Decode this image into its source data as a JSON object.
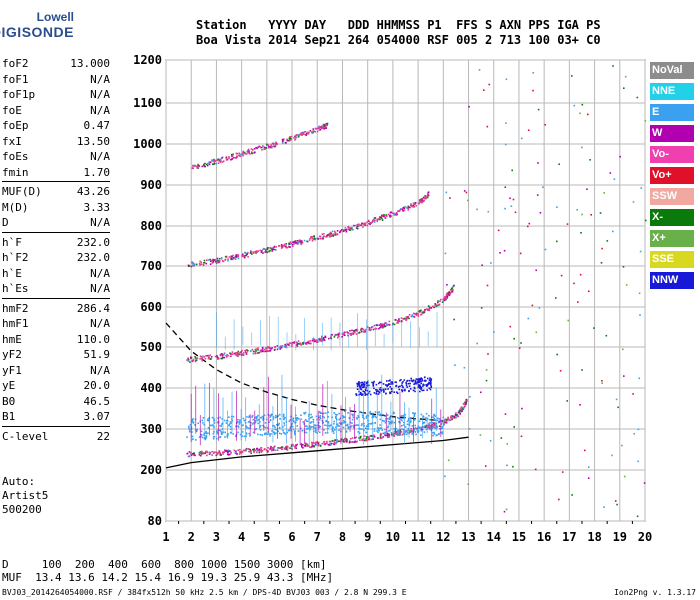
{
  "logo": {
    "line1": "Lowell",
    "line2": "DIGISONDE"
  },
  "header": {
    "row1": "Station   YYYY DAY   DDD HHMMSS P1  FFS S AXN PPS IGA PS",
    "row2": "Boa Vista 2014 Sep21 264 054000 RSF 005 2 713 100 03+ C0"
  },
  "params": [
    [
      {
        "k": "foF2",
        "v": "13.000"
      },
      {
        "k": "foF1",
        "v": "N/A"
      },
      {
        "k": "foF1p",
        "v": "N/A"
      },
      {
        "k": "foE",
        "v": "N/A"
      },
      {
        "k": "foEp",
        "v": "0.47"
      },
      {
        "k": "fxI",
        "v": "13.50"
      },
      {
        "k": "foEs",
        "v": "N/A"
      },
      {
        "k": "fmin",
        "v": "1.70"
      }
    ],
    [
      {
        "k": "MUF(D)",
        "v": "43.26"
      },
      {
        "k": "M(D)",
        "v": "3.33"
      },
      {
        "k": "D",
        "v": "N/A"
      }
    ],
    [
      {
        "k": "h`F",
        "v": "232.0"
      },
      {
        "k": "h`F2",
        "v": "232.0"
      },
      {
        "k": "h`E",
        "v": "N/A"
      },
      {
        "k": "h`Es",
        "v": "N/A"
      }
    ],
    [
      {
        "k": "hmF2",
        "v": "286.4"
      },
      {
        "k": "hmF1",
        "v": "N/A"
      },
      {
        "k": "hmE",
        "v": "110.0"
      },
      {
        "k": "yF2",
        "v": "51.9"
      },
      {
        "k": "yF1",
        "v": "N/A"
      },
      {
        "k": "yE",
        "v": "20.0"
      },
      {
        "k": "B0",
        "v": "46.5"
      },
      {
        "k": "B1",
        "v": "3.07"
      }
    ],
    [
      {
        "k": "C-level",
        "v": "22"
      }
    ]
  ],
  "auto": {
    "line1": "Auto:",
    "line2": "Artist5",
    "line3": "500200"
  },
  "bottom": {
    "d_row": "D     100  200  400  600  800 1000 1500 3000 [km]",
    "muf_row": "MUF  13.4 13.6 14.2 15.4 16.9 19.3 25.9 43.3 [MHz]",
    "file_info": "BVJ03_2014264054000.RSF / 384fx512h 50 kHz 2.5 km / DPS-4D BVJ03 003 / 2.8 N 299.3 E",
    "version": "Ion2Png v. 1.3.17"
  },
  "legend": [
    {
      "label": "NoVal",
      "color": "#8c8c8c"
    },
    {
      "label": "NNE",
      "color": "#22d0e8"
    },
    {
      "label": "E",
      "color": "#3aa0f0"
    },
    {
      "label": "W",
      "color": "#b000b0"
    },
    {
      "label": "Vo-",
      "color": "#f040b0"
    },
    {
      "label": "Vo+",
      "color": "#e0102a"
    },
    {
      "label": "SSW",
      "color": "#f0a8a0"
    },
    {
      "label": "X-",
      "color": "#0a7a0a"
    },
    {
      "label": "X+",
      "color": "#6ab04a"
    },
    {
      "label": "SSE",
      "color": "#d8d820"
    },
    {
      "label": "NNW",
      "color": "#1818d8"
    }
  ],
  "chart_data": {
    "type": "scatter",
    "xlim": [
      1,
      20
    ],
    "ylim": [
      80,
      1200
    ],
    "x_ticks": [
      1,
      2,
      3,
      4,
      5,
      6,
      7,
      8,
      9,
      10,
      11,
      12,
      13,
      14,
      15,
      16,
      17,
      18,
      19,
      20
    ],
    "y_ticks": [
      80,
      200,
      300,
      400,
      500,
      600,
      700,
      800,
      900,
      1000,
      1100,
      1200
    ],
    "grid": true,
    "traces": [
      {
        "name": "O-trace F2",
        "color": "#e0408a",
        "x": [
          1.8,
          3,
          4,
          5,
          6,
          7,
          8,
          9,
          10,
          11,
          12,
          12.6,
          12.9
        ],
        "y": [
          240,
          243,
          247,
          252,
          258,
          265,
          272,
          280,
          290,
          300,
          318,
          340,
          370
        ]
      },
      {
        "name": "O-trace 2nd hop",
        "color": "#e0408a",
        "x": [
          1.8,
          3,
          4,
          5,
          6,
          7,
          8,
          9,
          10,
          11,
          12,
          12.4
        ],
        "y": [
          470,
          478,
          487,
          497,
          508,
          520,
          533,
          547,
          563,
          585,
          620,
          650
        ]
      },
      {
        "name": "O-trace 3rd hop",
        "color": "#e0408a",
        "x": [
          1.8,
          3,
          4,
          5,
          6,
          7,
          8,
          9,
          10,
          11,
          11.4
        ],
        "y": [
          703,
          715,
          728,
          742,
          757,
          773,
          790,
          810,
          832,
          858,
          880
        ]
      },
      {
        "name": "O-trace 4th hop",
        "color": "#e0408a",
        "x": [
          2,
          3,
          4,
          5,
          6,
          7,
          7.4
        ],
        "y": [
          945,
          960,
          978,
          996,
          1016,
          1038,
          1048
        ]
      },
      {
        "name": "E-scatter",
        "color": "#3aa0f0",
        "x": [
          1.8,
          3,
          4,
          5,
          6,
          7,
          8,
          9,
          10,
          11,
          12
        ],
        "y": [
          300,
          305,
          310,
          312,
          315,
          317,
          318,
          318,
          316,
          314,
          310
        ]
      },
      {
        "name": "NNW-echoes",
        "color": "#1818d8",
        "x": [
          8.5,
          9,
          10,
          11,
          11.5
        ],
        "y": [
          400,
          402,
          405,
          410,
          415
        ]
      }
    ],
    "model_profiles": [
      {
        "name": "solid",
        "color": "#000",
        "x": [
          1,
          2,
          4,
          6,
          8,
          10,
          12,
          13
        ],
        "y": [
          205,
          218,
          232,
          242,
          252,
          262,
          272,
          280
        ]
      },
      {
        "name": "dashed",
        "color": "#000",
        "x": [
          1,
          2,
          3,
          4,
          5,
          6,
          7,
          8,
          9,
          10,
          11,
          12
        ],
        "y": [
          560,
          490,
          445,
          412,
          390,
          372,
          358,
          347,
          338,
          330,
          325,
          320
        ]
      }
    ]
  }
}
